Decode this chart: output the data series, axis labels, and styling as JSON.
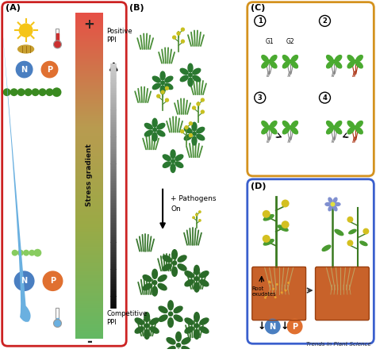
{
  "background": "#ffffff",
  "panel_A": {
    "border_color": "#cc2222",
    "label": "(A)",
    "stress_label": "Stress gradient",
    "plus_label": "+",
    "minus_label": "-",
    "positive_ppi": "Positive\nPPI",
    "competitive_ppi": "Competitive\nPPI",
    "N_color": "#4a7fc1",
    "P_color": "#e07030",
    "caterpillar_top": "#3a8a20",
    "caterpillar_bot": "#88cc60",
    "water_color": "#6ab0e0",
    "sun_color": "#f5c518",
    "grain_color": "#c8a030"
  },
  "panel_B": {
    "label": "(B)"
  },
  "panel_C": {
    "border_color": "#d4921e",
    "label": "(C)"
  },
  "panel_D": {
    "border_color": "#3a5fcd",
    "label": "(D)",
    "soil_color": "#c8622a",
    "footer": "Trends in Plant Science"
  }
}
